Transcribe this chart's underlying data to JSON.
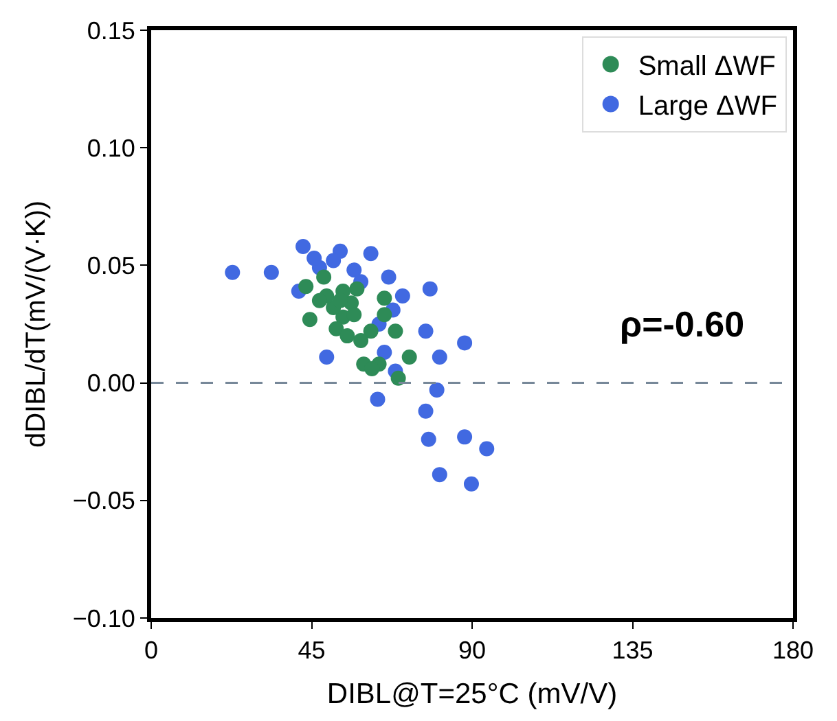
{
  "chart_data": {
    "type": "scatter",
    "xlabel": "DIBL@T=25°C (mV/V)",
    "ylabel": "dDIBL/dT(mV/(V·K))",
    "xlim": [
      0,
      180
    ],
    "xticks": [
      0,
      45,
      90,
      135,
      180
    ],
    "ylim": [
      -0.1,
      0.15
    ],
    "yticks": [
      {
        "value": -0.1,
        "label": "−0.10"
      },
      {
        "value": -0.05,
        "label": "−0.05"
      },
      {
        "value": 0,
        "label": "0.00"
      },
      {
        "value": 0.05,
        "label": "0.05"
      },
      {
        "value": 0.1,
        "label": "0.10"
      },
      {
        "value": 0.15,
        "label": "0.15"
      }
    ],
    "legend": "top right",
    "marker": "circle",
    "ref_lines": [
      {
        "axis": "y",
        "value": 0,
        "color": "#778899",
        "line_style": "dashed"
      }
    ],
    "annotations": [
      "ρ=-0.60"
    ],
    "series": [
      {
        "name": "Small ΔWF",
        "color": "#2e8b57",
        "x": [
          43.4,
          48.4,
          44.5,
          57.7,
          65.4,
          65.4,
          68.5,
          61.6,
          58.8,
          72.4,
          59.6,
          63.9,
          61.9,
          69.3,
          53.8,
          56.1,
          51.1,
          53.8,
          49.2,
          53,
          56.9,
          51.9,
          55,
          47.2
        ],
        "values": [
          0.041,
          0.045,
          0.027,
          0.04,
          0.036,
          0.029,
          0.022,
          0.022,
          0.018,
          0.011,
          0.008,
          0.008,
          0.006,
          0.002,
          0.028,
          0.034,
          0.032,
          0.039,
          0.037,
          0.035,
          0.029,
          0.023,
          0.02,
          0.035
        ]
      },
      {
        "name": "Large ΔWF",
        "color": "#4169e1",
        "x": [
          22.8,
          42.6,
          53,
          61.6,
          33.7,
          51.1,
          66.6,
          78.2,
          67.8,
          77,
          87.9,
          49.2,
          65.4,
          80.9,
          68.5,
          63.5,
          80.1,
          77,
          77.8,
          87.9,
          94.1,
          80.9,
          89.8,
          47.2,
          56.9,
          58.8,
          41.4,
          63.9,
          45.7,
          70.5
        ],
        "values": [
          0.047,
          0.058,
          0.056,
          0.055,
          0.047,
          0.052,
          0.045,
          0.04,
          0.031,
          0.022,
          0.017,
          0.011,
          0.013,
          0.011,
          0.005,
          -0.007,
          -0.003,
          -0.012,
          -0.024,
          -0.023,
          -0.028,
          -0.039,
          -0.043,
          0.049,
          0.048,
          0.043,
          0.039,
          0.025,
          0.053,
          0.037
        ]
      }
    ]
  }
}
